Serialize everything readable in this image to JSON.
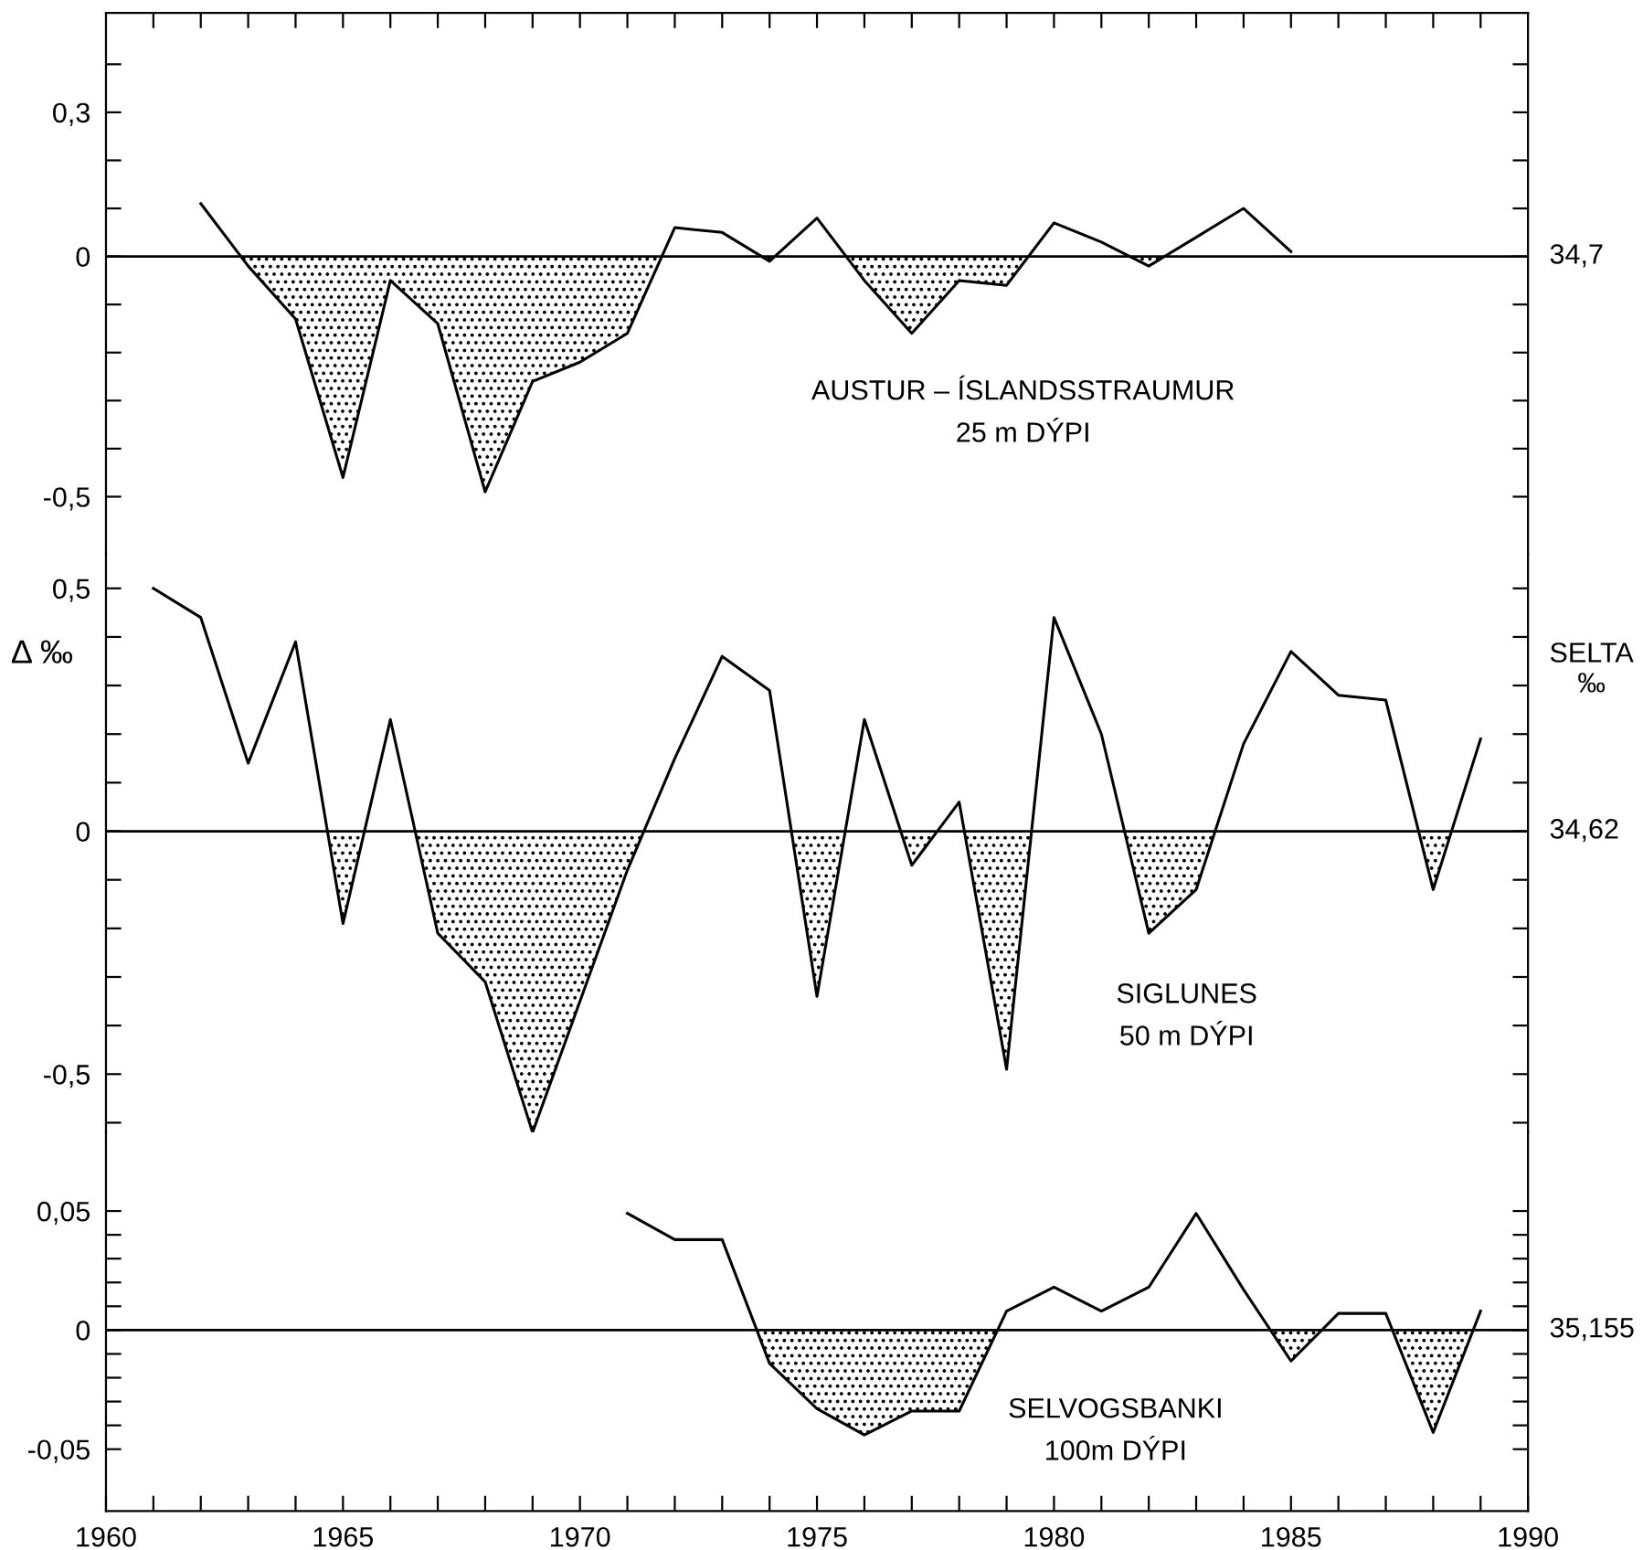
{
  "chart_data": [
    {
      "type": "line",
      "title": "AUSTUR – ÍSLANDSSTRAUMUR\n25 m DÝPI",
      "tick_labels": "y",
      "xlim": [
        1960,
        1990
      ],
      "ylim": [
        -0.62,
        0.507
      ],
      "xticks": [
        {
          "value": 1961,
          "label": null
        },
        {
          "value": 1962,
          "label": null
        },
        {
          "value": 1963,
          "label": null
        },
        {
          "value": 1964,
          "label": null
        },
        {
          "value": 1965,
          "label": null
        },
        {
          "value": 1966,
          "label": null
        },
        {
          "value": 1967,
          "label": null
        },
        {
          "value": 1968,
          "label": null
        },
        {
          "value": 1969,
          "label": null
        },
        {
          "value": 1970,
          "label": null
        },
        {
          "value": 1971,
          "label": null
        },
        {
          "value": 1972,
          "label": null
        },
        {
          "value": 1973,
          "label": null
        },
        {
          "value": 1974,
          "label": null
        },
        {
          "value": 1975,
          "label": null
        },
        {
          "value": 1976,
          "label": null
        },
        {
          "value": 1977,
          "label": null
        },
        {
          "value": 1978,
          "label": null
        },
        {
          "value": 1979,
          "label": null
        },
        {
          "value": 1980,
          "label": null
        },
        {
          "value": 1981,
          "label": null
        },
        {
          "value": 1982,
          "label": null
        },
        {
          "value": 1983,
          "label": null
        },
        {
          "value": 1984,
          "label": null
        },
        {
          "value": 1985,
          "label": null
        },
        {
          "value": 1986,
          "label": null
        },
        {
          "value": 1987,
          "label": null
        },
        {
          "value": 1988,
          "label": null
        },
        {
          "value": 1989,
          "label": null
        }
      ],
      "yticks": [
        {
          "value": 0.4,
          "label": null
        },
        {
          "value": 0.3,
          "label": "0,3"
        },
        {
          "value": 0.2,
          "label": null
        },
        {
          "value": 0.1,
          "label": null
        },
        0,
        {
          "value": -0.1,
          "label": null
        },
        {
          "value": -0.2,
          "label": null
        },
        {
          "value": -0.3,
          "label": null
        },
        {
          "value": -0.4,
          "label": null
        },
        {
          "value": -0.5,
          "label": "-0,5"
        }
      ],
      "ref_lines": [
        {
          "axis": "y",
          "value": 0,
          "color": "#000000"
        }
      ],
      "annotations": [
        "34,7"
      ],
      "x": [
        1962,
        1963,
        1964,
        1965,
        1966,
        1967,
        1968,
        1969,
        1970,
        1971,
        1972,
        1973,
        1974,
        1975,
        1976,
        1977,
        1978,
        1979,
        1980,
        1981,
        1982,
        1983,
        1984,
        1985
      ],
      "series": [
        {
          "color": "#000000",
          "values": [
            0.11,
            -0.02,
            -0.13,
            -0.46,
            -0.05,
            -0.14,
            -0.49,
            -0.26,
            -0.22,
            -0.16,
            0.06,
            0.05,
            -0.01,
            0.08,
            -0.05,
            -0.16,
            -0.05,
            -0.06,
            0.07,
            0.03,
            -0.02,
            0.04,
            0.1,
            0.01
          ],
          "lower": [
            0,
            -0.02,
            -0.13,
            -0.46,
            -0.05,
            -0.14,
            -0.49,
            -0.26,
            -0.22,
            -0.16,
            0,
            0,
            -0.01,
            0,
            -0.05,
            -0.16,
            -0.05,
            -0.06,
            0,
            0,
            -0.02,
            0,
            0,
            0
          ],
          "upper": [
            0,
            0,
            0,
            0,
            0,
            0,
            0,
            0,
            0,
            0,
            0,
            0,
            0,
            0,
            0,
            0,
            0,
            0,
            0,
            0,
            0,
            0,
            0,
            0
          ]
        }
      ]
    },
    {
      "type": "line",
      "title": "SIGLUNES\n50 m DÝPI",
      "ylabel": "Δ ‰",
      "y2label": "SELTA\n‰",
      "tick_labels": "y",
      "xlim": [
        1960,
        1990
      ],
      "ylim": [
        -0.62,
        0.57
      ],
      "yticks": [
        {
          "value": 0.5,
          "label": "0,5"
        },
        {
          "value": 0.4,
          "label": null
        },
        {
          "value": 0.3,
          "label": null
        },
        {
          "value": 0.2,
          "label": null
        },
        {
          "value": 0.1,
          "label": null
        },
        0,
        {
          "value": -0.1,
          "label": null
        },
        {
          "value": -0.2,
          "label": null
        },
        {
          "value": -0.3,
          "label": null
        },
        {
          "value": -0.4,
          "label": null
        },
        {
          "value": -0.5,
          "label": "-0,5"
        },
        {
          "value": -0.6,
          "label": null
        }
      ],
      "ref_lines": [
        {
          "axis": "y",
          "value": 0,
          "color": "#000000"
        }
      ],
      "annotations": [
        "34,62"
      ],
      "x": [
        1961,
        1962,
        1963,
        1964,
        1965,
        1966,
        1967,
        1968,
        1969,
        1970,
        1971,
        1972,
        1973,
        1974,
        1975,
        1976,
        1977,
        1978,
        1979,
        1980,
        1981,
        1982,
        1983,
        1984,
        1985,
        1986,
        1987,
        1988,
        1989
      ],
      "series": [
        {
          "color": "#000000",
          "values": [
            0.5,
            0.44,
            0.14,
            0.39,
            -0.19,
            0.23,
            -0.21,
            -0.31,
            -0.62,
            -0.35,
            -0.08,
            0.15,
            0.36,
            0.29,
            -0.34,
            0.23,
            -0.07,
            0.06,
            -0.49,
            0.44,
            0.2,
            -0.21,
            -0.12,
            0.18,
            0.37,
            0.28,
            0.27,
            -0.12,
            0.19
          ],
          "lower": [
            0,
            0,
            0,
            0,
            -0.19,
            0,
            -0.21,
            -0.31,
            -0.62,
            -0.35,
            -0.08,
            0,
            0,
            0,
            -0.34,
            0,
            -0.07,
            0,
            -0.49,
            0,
            0,
            -0.21,
            -0.12,
            0,
            0,
            0,
            0,
            -0.12,
            0
          ],
          "upper": [
            0,
            0,
            0,
            0,
            0,
            0,
            0,
            0,
            0,
            0,
            0,
            0,
            0,
            0,
            0,
            0,
            0,
            0,
            0,
            0,
            0,
            0,
            0,
            0,
            0,
            0,
            0,
            0,
            0
          ]
        }
      ]
    },
    {
      "type": "line",
      "title": "SELVOGSBANKI\n100m DÝPI",
      "xlim": [
        1960,
        1990
      ],
      "ylim": [
        -0.076,
        0.083
      ],
      "xticks": [
        1960,
        {
          "value": 1961,
          "label": null
        },
        {
          "value": 1962,
          "label": null
        },
        {
          "value": 1963,
          "label": null
        },
        {
          "value": 1964,
          "label": null
        },
        1965,
        {
          "value": 1966,
          "label": null
        },
        {
          "value": 1967,
          "label": null
        },
        {
          "value": 1968,
          "label": null
        },
        {
          "value": 1969,
          "label": null
        },
        1970,
        {
          "value": 1971,
          "label": null
        },
        {
          "value": 1972,
          "label": null
        },
        {
          "value": 1973,
          "label": null
        },
        {
          "value": 1974,
          "label": null
        },
        1975,
        {
          "value": 1976,
          "label": null
        },
        {
          "value": 1977,
          "label": null
        },
        {
          "value": 1978,
          "label": null
        },
        {
          "value": 1979,
          "label": null
        },
        1980,
        {
          "value": 1981,
          "label": null
        },
        {
          "value": 1982,
          "label": null
        },
        {
          "value": 1983,
          "label": null
        },
        {
          "value": 1984,
          "label": null
        },
        1985,
        {
          "value": 1986,
          "label": null
        },
        {
          "value": 1987,
          "label": null
        },
        {
          "value": 1988,
          "label": null
        },
        {
          "value": 1989,
          "label": null
        },
        1990
      ],
      "yticks": [
        {
          "value": 0.05,
          "label": "0,05"
        },
        {
          "value": 0.04,
          "label": null
        },
        {
          "value": 0.03,
          "label": null
        },
        {
          "value": 0.02,
          "label": null
        },
        {
          "value": 0.01,
          "label": null
        },
        0,
        {
          "value": -0.01,
          "label": null
        },
        {
          "value": -0.02,
          "label": null
        },
        {
          "value": -0.03,
          "label": null
        },
        {
          "value": -0.04,
          "label": null
        },
        {
          "value": -0.05,
          "label": "-0,05"
        }
      ],
      "ref_lines": [
        {
          "axis": "y",
          "value": 0,
          "color": "#000000"
        }
      ],
      "annotations": [
        "35,155"
      ],
      "x": [
        1971,
        1972,
        1973,
        1974,
        1975,
        1976,
        1977,
        1978,
        1979,
        1980,
        1981,
        1982,
        1983,
        1984,
        1985,
        1986,
        1987,
        1988,
        1989
      ],
      "series": [
        {
          "color": "#000000",
          "values": [
            0.049,
            0.038,
            0.038,
            -0.014,
            -0.033,
            -0.044,
            -0.034,
            -0.034,
            0.008,
            0.018,
            0.008,
            0.018,
            0.049,
            0.017,
            -0.013,
            0.007,
            0.007,
            -0.043,
            0.008
          ],
          "lower": [
            0,
            0,
            0,
            -0.014,
            -0.033,
            -0.044,
            -0.034,
            -0.034,
            0,
            0,
            0,
            0,
            0,
            0,
            -0.013,
            0,
            0,
            -0.043,
            0
          ],
          "upper": [
            0,
            0,
            0,
            0,
            0,
            0,
            0,
            0,
            0,
            0,
            0,
            0,
            0,
            0,
            0,
            0,
            0,
            0,
            0
          ]
        }
      ]
    }
  ]
}
